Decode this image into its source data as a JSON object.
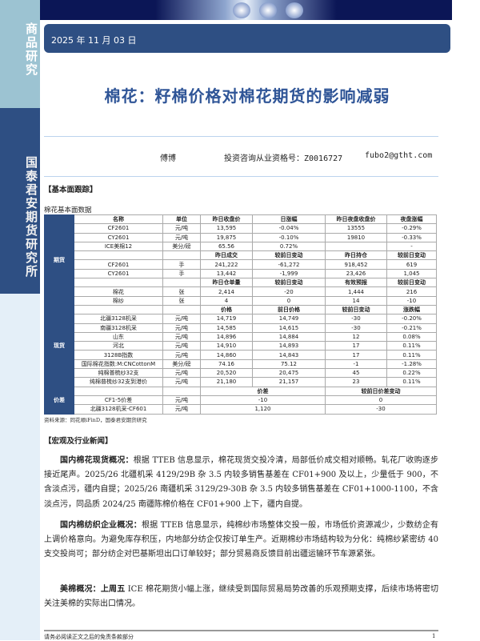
{
  "sidebar": {
    "top_label": "商品研究",
    "org_label": "国泰君安期货研究所"
  },
  "header": {
    "date": "2025 年 11 月 03 日",
    "title": "棉花：籽棉价格对棉花期货的影响减弱"
  },
  "author": {
    "name": "傅博",
    "license": "投资咨询从业资格号：Z0016727",
    "email": "fubo2@gtht.com"
  },
  "sections": {
    "fundamentals": "【基本面跟踪】",
    "table_caption": "棉花基本面数据",
    "news": "【宏观及行业新闻】"
  },
  "table": {
    "groups": [
      {
        "label": "期货",
        "rows": [
          {
            "hdr": true,
            "cells": [
              "名称",
              "单位",
              "昨日收盘价",
              "日涨幅",
              "昨日夜盘收盘价",
              "夜盘涨幅"
            ]
          },
          {
            "cells": [
              "CF2601",
              "元/吨",
              "13,595",
              "-0.04%",
              "13555",
              "-0.29%"
            ]
          },
          {
            "cells": [
              "CY2601",
              "元/吨",
              "19,875",
              "-0.10%",
              "19810",
              "-0.33%"
            ]
          },
          {
            "cells": [
              "ICE美棉12",
              "美分/磅",
              "65.56",
              "0.72%",
              "",
              "-"
            ]
          },
          {
            "hdr": true,
            "cells": [
              "",
              "",
              "昨日成交",
              "较前日变动",
              "昨日持仓",
              "较前日变动"
            ]
          },
          {
            "cells": [
              "CF2601",
              "手",
              "241,222",
              "-61,272",
              "918,452",
              "619"
            ]
          },
          {
            "cells": [
              "CY2601",
              "手",
              "13,442",
              "-1,999",
              "23,426",
              "1,045"
            ]
          },
          {
            "hdr": true,
            "cells": [
              "",
              "",
              "昨日仓单量",
              "较前日变动",
              "有效预报",
              "较前日变动"
            ]
          },
          {
            "cells": [
              "棉花",
              "张",
              "2,414",
              "-20",
              "1,444",
              "216"
            ]
          },
          {
            "cells": [
              "棉纱",
              "张",
              "4",
              "0",
              "14",
              "-10"
            ]
          }
        ]
      },
      {
        "label": "现货",
        "rows": [
          {
            "hdr": true,
            "cells": [
              "",
              "",
              "价格",
              "前日价格",
              "较前日变动",
              "涨跌幅"
            ]
          },
          {
            "cells": [
              "北疆3128机采",
              "元/吨",
              "14,719",
              "14,749",
              "-30",
              "-0.20%"
            ]
          },
          {
            "cells": [
              "南疆3128机采",
              "元/吨",
              "14,585",
              "14,615",
              "-30",
              "-0.21%"
            ]
          },
          {
            "cells": [
              "山东",
              "元/吨",
              "14,896",
              "14,884",
              "12",
              "0.08%"
            ]
          },
          {
            "cells": [
              "河北",
              "元/吨",
              "14,910",
              "14,893",
              "17",
              "0.11%"
            ]
          },
          {
            "cells": [
              "3128B指数",
              "元/吨",
              "14,860",
              "14,843",
              "17",
              "0.11%"
            ]
          },
          {
            "cells": [
              "国际棉花指数:M:CNCottonM",
              "美分/磅",
              "74.16",
              "75.12",
              "-1",
              "-1.28%"
            ]
          },
          {
            "cells": [
              "纯棉普梳纱32支",
              "元/吨",
              "20,520",
              "20,475",
              "45",
              "0.22%"
            ]
          },
          {
            "cells": [
              "纯棉普梳纱32支到港价",
              "元/吨",
              "21,180",
              "21,157",
              "23",
              "0.11%"
            ]
          }
        ]
      },
      {
        "label": "价差",
        "rows": [
          {
            "hdr": true,
            "span": true,
            "cells": [
              "",
              "",
              "价差",
              "较前日价差变动"
            ]
          },
          {
            "span": true,
            "cells": [
              "CF1-5价差",
              "元/吨",
              "-10",
              "0"
            ]
          },
          {
            "span": true,
            "cells": [
              "北疆3128机采-CF601",
              "元/吨",
              "1,120",
              "-30"
            ]
          }
        ]
      }
    ],
    "source": "资料来源：同花顺iFinD，国泰君安期货研究"
  },
  "news": [
    {
      "lead": "国内棉花现货概况：",
      "text": "根据 TTEB 信息显示，棉花现货交投冷清，局部低价成交相对顺畅。轧花厂收购逐步接近尾声。2025/26 北疆机采 4129/29B 杂 3.5 内较多销售基差在 CF01+900 及以上，少量低于 900，不含淡点污，疆内自提；2025/26 南疆机采 3129/29-30B 杂 3.5 内较多销售基差在 CF01+1000-1100，不含淡点污，同品质 2024/25 南疆陈棉价格在 CF01+900 上下，疆内自提。"
    },
    {
      "lead": "国内棉纺织企业概况：",
      "text": "根据 TTEB 信息显示，纯棉纱市场整体交投一般，市场低价资源减少，少数纺企有上调价格意向。为避免库存积压，内地部分纺企仅按订单生产。近期棉纱市场结构较为分化：纯棉纱紧密纺 40 支交投尚可；部分纺企对巴基斯坦出口订单较好；部分贸易商反馈目前出疆运输环节车源紧张。"
    },
    {
      "lead": "美棉概况：上周五",
      "text": " ICE 棉花期货小幅上涨，继续受到国际贸易局势改善的乐观预期支撑，后续市场将密切关注美棉的实际出口情况。"
    }
  ],
  "footer": {
    "disclaimer": "请务必阅读正文之后的免责条款部分",
    "page": "1"
  },
  "colors": {
    "brand_dark": "#2e4f83",
    "title": "#2f5597",
    "sidebar_light": "#9cc3d2"
  }
}
